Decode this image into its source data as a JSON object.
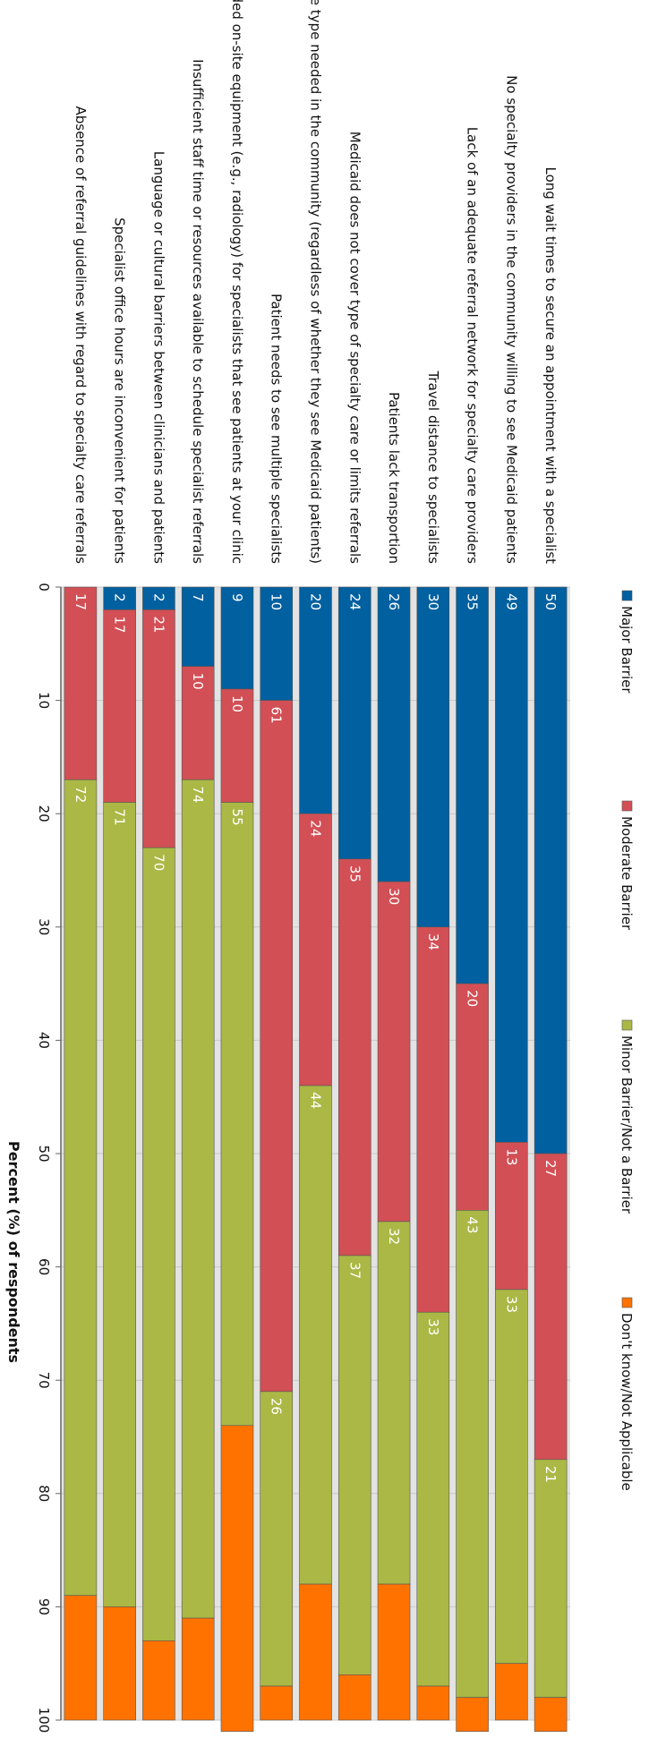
{
  "chart_data": {
    "type": "bar",
    "orientation": "horizontal",
    "stacked": true,
    "xlabel": "Percent (%) of respondents",
    "xlim": [
      0,
      100
    ],
    "xticks": [
      0,
      10,
      20,
      30,
      40,
      50,
      60,
      70,
      80,
      90,
      100
    ],
    "legend_position": "top",
    "categories": [
      "Long wait times  to  secure an appointment with a specialist",
      "No specialty providers in the community willing to see Medicaid patients",
      "Lack of an adequate referral network for  specialty care providers",
      "Travel distance to specialists",
      "Patients lack transportion",
      "Medicaid does not cover type of specialty care or limits referrals",
      "No specialists of the type needed in the community (regardless of whether they see Medicaid patients)",
      "Patient needs to see multiple specialists",
      "Lack of needed on-site equipment (e.g., radiology) for  specialists that see patients at your clinic",
      "Insufficient staff time  or resources available to schedule specialist referrals",
      "Language or cultural barriers between clinicians and patients",
      "Specialist office hours are inconvenient for patients",
      "Absence of referral  guidelines with regard to specialty care referrals"
    ],
    "series": [
      {
        "name": "Major Barrier",
        "color": "#0060a0",
        "values": [
          50,
          49,
          35,
          30,
          26,
          24,
          20,
          10,
          9,
          7,
          2,
          2,
          0
        ],
        "labels": [
          "50",
          "49",
          "35",
          "30",
          "26",
          "24",
          "20",
          "10",
          "9",
          "7",
          "2",
          "2",
          ""
        ]
      },
      {
        "name": "Moderate Barrier",
        "color": "#d24f55",
        "values": [
          27,
          13,
          20,
          34,
          30,
          35,
          24,
          61,
          10,
          10,
          21,
          17,
          17
        ],
        "labels": [
          "27",
          "13",
          "20",
          "34",
          "30",
          "35",
          "24",
          "61",
          "10",
          "10",
          "21",
          "17",
          "17"
        ]
      },
      {
        "name": "Minor Barrier/Not a Barrier",
        "color": "#abb845",
        "values": [
          21,
          33,
          43,
          33,
          32,
          37,
          44,
          26,
          55,
          74,
          70,
          71,
          72
        ],
        "labels": [
          "21",
          "33",
          "43",
          "33",
          "32",
          "37",
          "44",
          "26",
          "55",
          "74",
          "70",
          "71",
          "72"
        ]
      },
      {
        "name": "Don't know/Not Applicable",
        "color": "#ff7200",
        "values": [
          3,
          5,
          3,
          3,
          12,
          4,
          12,
          3,
          27,
          9,
          7,
          10,
          11
        ],
        "labels": [
          "",
          "",
          "",
          "",
          "",
          "",
          "",
          "",
          "",
          "",
          "",
          "",
          ""
        ]
      }
    ]
  }
}
